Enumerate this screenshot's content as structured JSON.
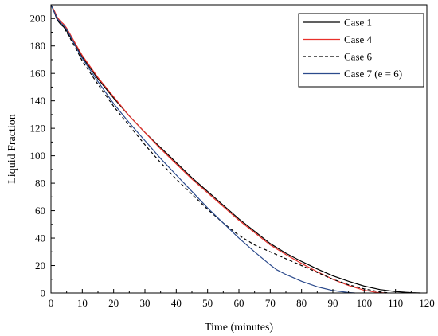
{
  "chart_data": {
    "type": "line",
    "title": "",
    "xlabel": "Time (minutes)",
    "ylabel": "Liquid Fraction",
    "xlim": [
      0,
      120
    ],
    "ylim": [
      0,
      210
    ],
    "xticks": [
      0,
      10,
      20,
      30,
      40,
      50,
      60,
      70,
      80,
      90,
      100,
      110,
      120
    ],
    "yticks": [
      0,
      20,
      40,
      60,
      80,
      100,
      120,
      140,
      160,
      180,
      200
    ],
    "grid": false,
    "legend_position": "top-right",
    "series": [
      {
        "name": "Case 1",
        "color": "#000000",
        "dash": "solid",
        "x": [
          0,
          1,
          2,
          3,
          4,
          5,
          6,
          8,
          10,
          15,
          20,
          25,
          30,
          35,
          40,
          45,
          50,
          55,
          60,
          65,
          70,
          75,
          80,
          85,
          90,
          95,
          100,
          105,
          110,
          115,
          118
        ],
        "y": [
          210,
          205,
          199,
          196,
          194,
          191,
          187,
          180,
          172,
          156,
          142,
          129,
          117,
          106,
          95,
          84,
          74,
          64,
          54,
          45,
          36,
          29,
          23,
          17.5,
          12.5,
          8.5,
          5,
          2.5,
          1,
          0.2,
          0
        ]
      },
      {
        "name": "Case 4",
        "color": "#e8302a",
        "dash": "solid",
        "x": [
          0,
          1,
          2,
          3,
          4,
          5,
          6,
          8,
          10,
          15,
          20,
          25,
          30,
          35,
          40,
          45,
          50,
          55,
          60,
          65,
          70,
          75,
          80,
          85,
          90,
          95,
          100,
          104,
          107
        ],
        "y": [
          210,
          206,
          201,
          198,
          196,
          193,
          189,
          181,
          173,
          157,
          143,
          129,
          117,
          105,
          94,
          83,
          73,
          63,
          53,
          44,
          35,
          28,
          21.5,
          15.5,
          10,
          5.5,
          2,
          0.4,
          0
        ]
      },
      {
        "name": "Case 6",
        "color": "#000000",
        "dash": "dashed",
        "x": [
          0,
          1,
          2,
          3,
          4,
          5,
          6,
          8,
          10,
          15,
          20,
          25,
          30,
          35,
          40,
          45,
          50,
          55,
          60,
          65,
          70,
          75,
          80,
          85,
          90,
          95,
          100,
          105,
          108
        ],
        "y": [
          210,
          205,
          199,
          196,
          194,
          190,
          186,
          178,
          169,
          152,
          136,
          122,
          108,
          95,
          83,
          72,
          61,
          51,
          42,
          35,
          30,
          25,
          20,
          15,
          10,
          6,
          3,
          0.8,
          0
        ]
      },
      {
        "name": "Case 7 (e = 6)",
        "color": "#2b4a8c",
        "dash": "solid",
        "x": [
          0,
          1,
          2,
          3,
          4,
          5,
          6,
          8,
          10,
          15,
          20,
          25,
          30,
          35,
          40,
          45,
          50,
          55,
          60,
          65,
          70,
          72,
          75,
          80,
          85,
          90,
          95,
          97
        ],
        "y": [
          210,
          205,
          200,
          197,
          195,
          192,
          188,
          179,
          171,
          154,
          138,
          124,
          111,
          98,
          86,
          74,
          62,
          51,
          40,
          30,
          20.5,
          17,
          13.5,
          8.5,
          4.5,
          1.8,
          0.3,
          0
        ]
      }
    ]
  }
}
